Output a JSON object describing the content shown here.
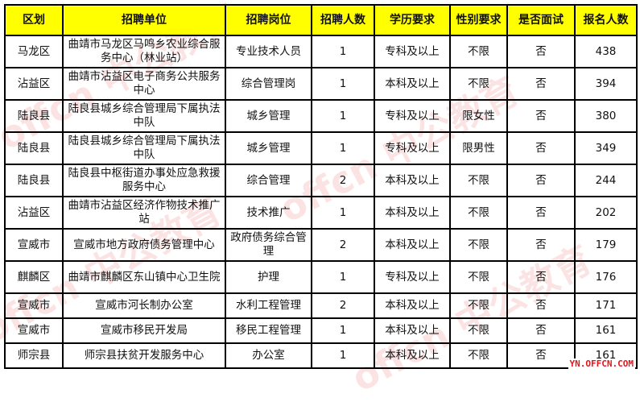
{
  "headers": [
    "区划",
    "招聘单位",
    "招聘岗位",
    "招聘人数",
    "学历要求",
    "性别要求",
    "是否面试",
    "报名人数"
  ],
  "rows": [
    [
      "马龙区",
      "曲靖市马龙区马鸣乡农业综合服务中心（林业站）",
      "专业技术人员",
      "1",
      "专科及以上",
      "不限",
      "否",
      "438"
    ],
    [
      "沾益区",
      "曲靖市沾益区电子商务公共服务中心",
      "综合管理岗",
      "1",
      "本科及以上",
      "不限",
      "否",
      "394"
    ],
    [
      "陆良县",
      "陆良县城乡综合管理局下属执法中队",
      "城乡管理",
      "1",
      "专科及以上",
      "限女性",
      "否",
      "380"
    ],
    [
      "陆良县",
      "陆良县城乡综合管理局下属执法中队",
      "城乡管理",
      "1",
      "专科及以上",
      "限男性",
      "否",
      "349"
    ],
    [
      "陆良县",
      "陆良县中枢街道办事处应急救援服务中心",
      "综合管理",
      "2",
      "本科及以上",
      "不限",
      "否",
      "244"
    ],
    [
      "沾益区",
      "曲靖市沾益区经济作物技术推广站",
      "技术推广",
      "1",
      "本科及以上",
      "不限",
      "否",
      "202"
    ],
    [
      "宣威市",
      "宣威市地方政府债务管理中心",
      "政府债务综合管理",
      "2",
      "本科及以上",
      "不限",
      "否",
      "179"
    ],
    [
      "麒麟区",
      "曲靖市麒麟区东山镇中心卫生院",
      "护理",
      "1",
      "专科及以上",
      "不限",
      "否",
      "176"
    ],
    [
      "宣威市",
      "宣威市河长制办公室",
      "水利工程管理",
      "2",
      "本科及以上",
      "不限",
      "否",
      "171"
    ],
    [
      "宣威市",
      "宣威市移民开发局",
      "移民工程管理",
      "1",
      "本科及以上",
      "不限",
      "否",
      "161"
    ],
    [
      "师宗县",
      "师宗县扶贫开发服务中心",
      "办公室",
      "1",
      "本科及以上",
      "不限",
      "否",
      "161"
    ]
  ],
  "watermark": "offcn 中公教育",
  "site_logo": "YN.OFFCN.COM"
}
